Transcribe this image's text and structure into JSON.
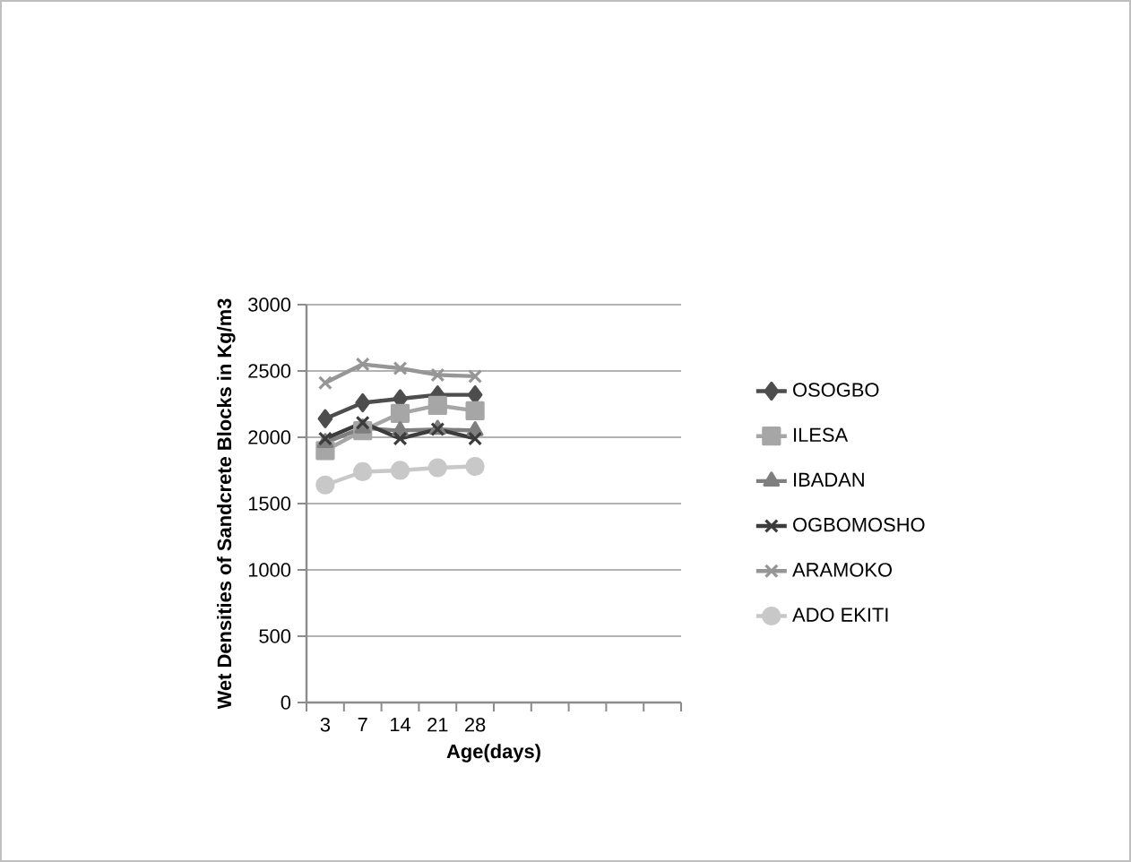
{
  "chart_data": {
    "type": "line",
    "xlabel": "Age(days)",
    "ylabel": "Wet Densities of Sandcrete Blocks in Kg/m3",
    "categories": [
      "3",
      "7",
      "14",
      "21",
      "28",
      null,
      null,
      null,
      null,
      null
    ],
    "ylim": [
      0,
      3000
    ],
    "yticks": [
      0,
      500,
      1000,
      1500,
      2000,
      2500,
      3000
    ],
    "grid": "y",
    "legend": "right",
    "series": [
      {
        "name": "OSOGBO",
        "color": "#4d4d4d",
        "marker": "diamond",
        "values": [
          2140,
          2260,
          2290,
          2320,
          2320,
          null,
          null,
          null,
          null,
          null
        ]
      },
      {
        "name": "ILESA",
        "color": "#a6a6a6",
        "marker": "square",
        "values": [
          1900,
          2050,
          2180,
          2240,
          2200,
          null,
          null,
          null,
          null,
          null
        ]
      },
      {
        "name": "IBADAN",
        "color": "#7f7f7f",
        "marker": "triangle",
        "values": [
          1960,
          2070,
          2050,
          2060,
          2050,
          null,
          null,
          null,
          null,
          null
        ]
      },
      {
        "name": "OGBOMOSHO",
        "color": "#3c3c3c",
        "marker": "cross",
        "values": [
          1990,
          2110,
          1990,
          2060,
          1990,
          null,
          null,
          null,
          null,
          null
        ]
      },
      {
        "name": "ARAMOKO",
        "color": "#969696",
        "marker": "cross",
        "values": [
          2410,
          2550,
          2520,
          2470,
          2460,
          null,
          null,
          null,
          null,
          null
        ]
      },
      {
        "name": "ADO EKITI",
        "color": "#c8c8c8",
        "marker": "circle",
        "values": [
          1640,
          1740,
          1750,
          1770,
          1780,
          null,
          null,
          null,
          null,
          null
        ]
      }
    ]
  }
}
